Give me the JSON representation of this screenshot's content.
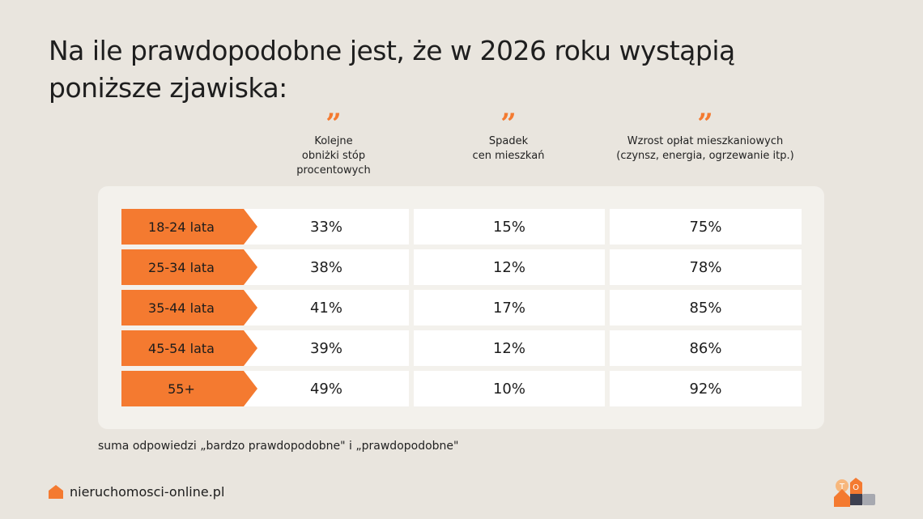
{
  "title": "Na ile prawdopodobne jest, że w 2026 roku wystąpią poniższe zjawiska:",
  "note": "suma odpowiedzi „bardzo prawdopodobne\" i „prawdopodobne\"",
  "site": "nieruchomosci-online.pl",
  "logo_text": "TOmy",
  "colors": {
    "accent": "#f47a30",
    "background": "#e9e5de",
    "panel": "#f3f1ec"
  },
  "chart_data": {
    "type": "table",
    "columns": [
      "Kolejne obniżki stóp procentowych",
      "Spadek cen mieszkań",
      "Wzrost opłat mieszkaniowych (czynsz, energia, ogrzewanie itp.)"
    ],
    "column_lines": [
      [
        "Kolejne",
        "obniżki stóp",
        "procentowych"
      ],
      [
        "Spadek",
        "cen mieszkań"
      ],
      [
        "Wzrost opłat mieszkaniowych",
        "(czynsz, energia, ogrzewanie itp.)"
      ]
    ],
    "rows": [
      {
        "label": "18-24 lata",
        "values": [
          "33%",
          "15%",
          "75%"
        ]
      },
      {
        "label": "25-34 lata",
        "values": [
          "38%",
          "12%",
          "78%"
        ]
      },
      {
        "label": "35-44 lata",
        "values": [
          "41%",
          "17%",
          "85%"
        ]
      },
      {
        "label": "45-54 lata",
        "values": [
          "39%",
          "12%",
          "86%"
        ]
      },
      {
        "label": "55+",
        "values": [
          "49%",
          "10%",
          "92%"
        ]
      }
    ]
  }
}
